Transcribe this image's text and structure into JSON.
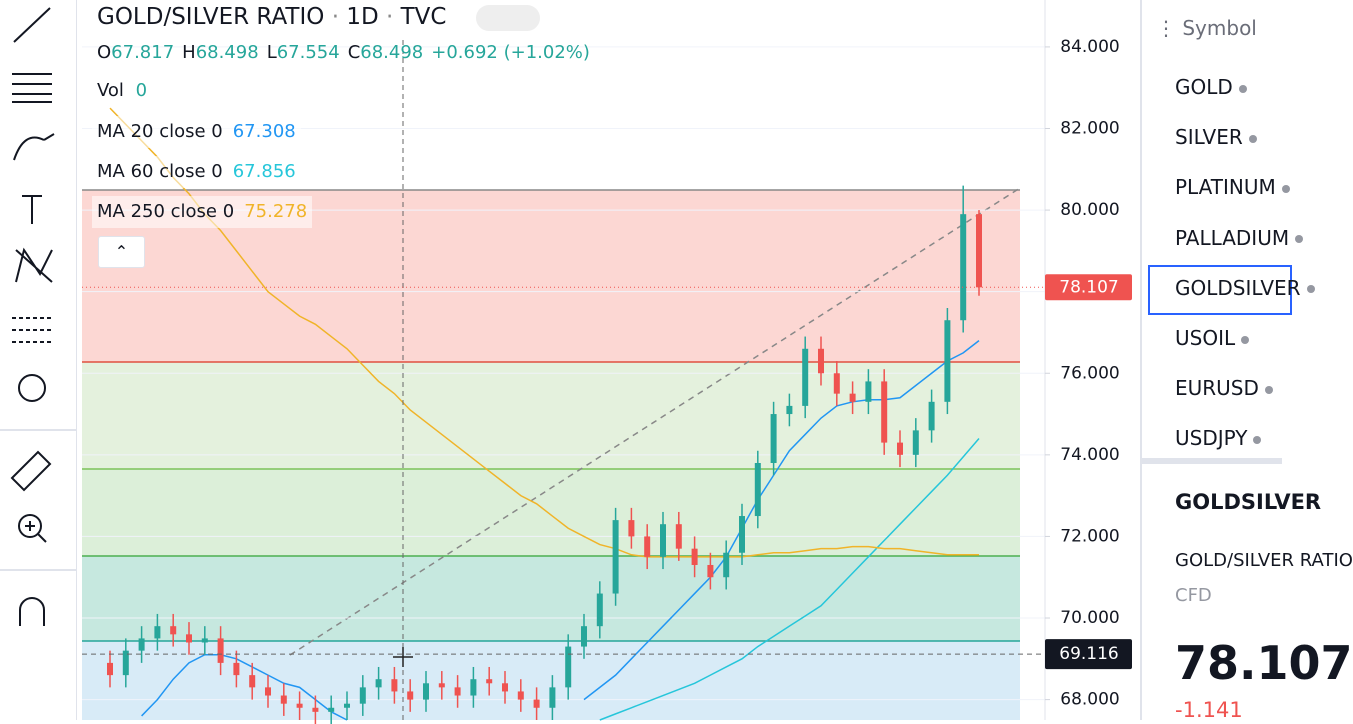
{
  "header": {
    "title": "GOLD/SILVER RATIO",
    "interval": "1D",
    "source": "TVC"
  },
  "chart_data": {
    "type": "candlestick",
    "ohlc": [
      {
        "label": "O",
        "value": 67.817
      },
      {
        "label": "H",
        "value": 68.498
      },
      {
        "label": "L",
        "value": 67.554
      },
      {
        "label": "C",
        "value": 68.498
      }
    ],
    "change": "+0.692 (+1.02%)",
    "volume": {
      "label": "Vol",
      "value": 0
    },
    "up_color": "#26a69a",
    "down_color": "#ef5350",
    "candles": [
      [
        68.9,
        69.2,
        68.3,
        68.6
      ],
      [
        68.6,
        69.5,
        68.3,
        69.2
      ],
      [
        69.2,
        69.8,
        68.9,
        69.5
      ],
      [
        69.5,
        70.1,
        69.2,
        69.8
      ],
      [
        69.8,
        70.1,
        69.3,
        69.6
      ],
      [
        69.6,
        69.9,
        69.1,
        69.4
      ],
      [
        69.4,
        69.8,
        69.1,
        69.5
      ],
      [
        69.5,
        69.8,
        68.6,
        68.9
      ],
      [
        68.9,
        69.2,
        68.3,
        68.6
      ],
      [
        68.6,
        68.9,
        68.0,
        68.3
      ],
      [
        68.3,
        68.6,
        67.8,
        68.1
      ],
      [
        68.1,
        68.4,
        67.6,
        67.9
      ],
      [
        67.9,
        68.2,
        67.5,
        67.8
      ],
      [
        67.8,
        68.1,
        67.4,
        67.7
      ],
      [
        67.7,
        68.1,
        67.4,
        67.8
      ],
      [
        67.8,
        68.2,
        67.5,
        67.9
      ],
      [
        67.9,
        68.6,
        67.6,
        68.3
      ],
      [
        68.3,
        68.8,
        68.0,
        68.5
      ],
      [
        68.5,
        68.8,
        67.9,
        68.2
      ],
      [
        68.2,
        68.5,
        67.7,
        68.0
      ],
      [
        68.0,
        68.7,
        67.7,
        68.4
      ],
      [
        68.4,
        68.7,
        68.0,
        68.3
      ],
      [
        68.3,
        68.6,
        67.8,
        68.1
      ],
      [
        68.1,
        68.8,
        67.8,
        68.5
      ],
      [
        68.5,
        68.8,
        68.1,
        68.4
      ],
      [
        68.4,
        68.7,
        67.9,
        68.2
      ],
      [
        68.2,
        68.5,
        67.7,
        68.0
      ],
      [
        68.0,
        68.3,
        67.5,
        67.8
      ],
      [
        67.8,
        68.6,
        67.5,
        68.3
      ],
      [
        68.3,
        69.6,
        68.0,
        69.3
      ],
      [
        69.3,
        70.1,
        69.0,
        69.8
      ],
      [
        69.8,
        70.9,
        69.5,
        70.6
      ],
      [
        70.6,
        72.7,
        70.3,
        72.4
      ],
      [
        72.4,
        72.7,
        71.7,
        72.0
      ],
      [
        72.0,
        72.3,
        71.2,
        71.5
      ],
      [
        71.5,
        72.6,
        71.2,
        72.3
      ],
      [
        72.3,
        72.6,
        71.4,
        71.7
      ],
      [
        71.7,
        72.0,
        71.0,
        71.3
      ],
      [
        71.3,
        71.6,
        70.7,
        71.0
      ],
      [
        71.0,
        71.9,
        70.7,
        71.6
      ],
      [
        71.6,
        72.8,
        71.3,
        72.5
      ],
      [
        72.5,
        74.1,
        72.2,
        73.8
      ],
      [
        73.8,
        75.3,
        73.5,
        75.0
      ],
      [
        75.0,
        75.5,
        74.7,
        75.2
      ],
      [
        75.2,
        76.9,
        74.9,
        76.6
      ],
      [
        76.6,
        76.9,
        75.7,
        76.0
      ],
      [
        76.0,
        76.3,
        75.2,
        75.5
      ],
      [
        75.5,
        75.8,
        75.0,
        75.3
      ],
      [
        75.3,
        76.1,
        75.0,
        75.8
      ],
      [
        75.8,
        76.1,
        74.0,
        74.3
      ],
      [
        74.3,
        74.6,
        73.7,
        74.0
      ],
      [
        74.0,
        74.9,
        73.7,
        74.6
      ],
      [
        74.6,
        75.6,
        74.3,
        75.3
      ],
      [
        75.3,
        77.6,
        75.0,
        77.3
      ],
      [
        77.3,
        80.6,
        77.0,
        79.9
      ],
      [
        79.9,
        80.0,
        77.9,
        78.107
      ]
    ],
    "series": [
      {
        "name": "MA 20 close 0",
        "color": "#2196f3",
        "legend_value": 67.308,
        "values": [
          null,
          null,
          67.6,
          68.0,
          68.5,
          68.9,
          69.1,
          69.1,
          69.0,
          68.8,
          68.6,
          68.4,
          68.3,
          68.0,
          67.7,
          67.5,
          null,
          null,
          null,
          null,
          null,
          null,
          null,
          null,
          null,
          null,
          null,
          null,
          null,
          null,
          68.0,
          68.3,
          68.6,
          69.0,
          69.4,
          69.8,
          70.2,
          70.6,
          71.0,
          71.5,
          72.2,
          72.9,
          73.5,
          74.1,
          74.5,
          74.9,
          75.2,
          75.3,
          75.35,
          75.35,
          75.4,
          75.7,
          76.0,
          76.3,
          76.5,
          76.8
        ]
      },
      {
        "name": "MA 60 close 0",
        "color": "#26c6da",
        "legend_value": 67.856,
        "values": [
          null,
          null,
          null,
          null,
          null,
          null,
          null,
          null,
          null,
          null,
          null,
          null,
          null,
          null,
          null,
          null,
          null,
          null,
          null,
          null,
          null,
          null,
          null,
          null,
          null,
          null,
          null,
          null,
          null,
          null,
          null,
          67.5,
          67.65,
          67.8,
          67.95,
          68.1,
          68.25,
          68.4,
          68.6,
          68.8,
          69.0,
          69.3,
          69.55,
          69.8,
          70.05,
          70.3,
          70.7,
          71.1,
          71.5,
          71.9,
          72.3,
          72.7,
          73.1,
          73.5,
          73.95,
          74.4
        ]
      },
      {
        "name": "MA 250 close 0",
        "color": "#f0b429",
        "legend_value": 75.278,
        "values": [
          82.5,
          82.1,
          81.7,
          81.3,
          80.8,
          80.4,
          79.9,
          79.5,
          79.0,
          78.5,
          78.0,
          77.7,
          77.4,
          77.2,
          76.9,
          76.6,
          76.2,
          75.8,
          75.5,
          75.1,
          74.8,
          74.5,
          74.2,
          73.9,
          73.6,
          73.3,
          73.0,
          72.8,
          72.5,
          72.2,
          72.0,
          71.8,
          71.7,
          71.55,
          71.5,
          71.5,
          71.5,
          71.5,
          71.5,
          71.5,
          71.5,
          71.55,
          71.6,
          71.6,
          71.65,
          71.7,
          71.7,
          71.75,
          71.75,
          71.7,
          71.7,
          71.65,
          71.6,
          71.55,
          71.55,
          71.55
        ]
      }
    ],
    "ylim": [
      67.5,
      85.15
    ],
    "yticks": [
      {
        "value": 68,
        "label": "68.000"
      },
      {
        "value": 70,
        "label": "70.000"
      },
      {
        "value": 72,
        "label": "72.000"
      },
      {
        "value": 74,
        "label": "74.000"
      },
      {
        "value": 76,
        "label": "76.000"
      },
      {
        "value": 78,
        "label": "78.000"
      },
      {
        "value": 80,
        "label": "80.000"
      },
      {
        "value": 82,
        "label": "82.000"
      },
      {
        "value": 84,
        "label": "84.000"
      }
    ],
    "crosshair_price": 69.116,
    "grid": true
  },
  "watchlist": {
    "header": "Symbol",
    "items": [
      "GOLD",
      "SILVER",
      "PLATINUM",
      "PALLADIUM",
      "GOLDSILVER",
      "USOIL",
      "EURUSD",
      "USDJPY"
    ]
  },
  "details": {
    "symbol": "GOLDSILVER",
    "description": "GOLD/SILVER RATIO",
    "kind": "CFD",
    "price": "78.107",
    "change": "-1.141"
  }
}
